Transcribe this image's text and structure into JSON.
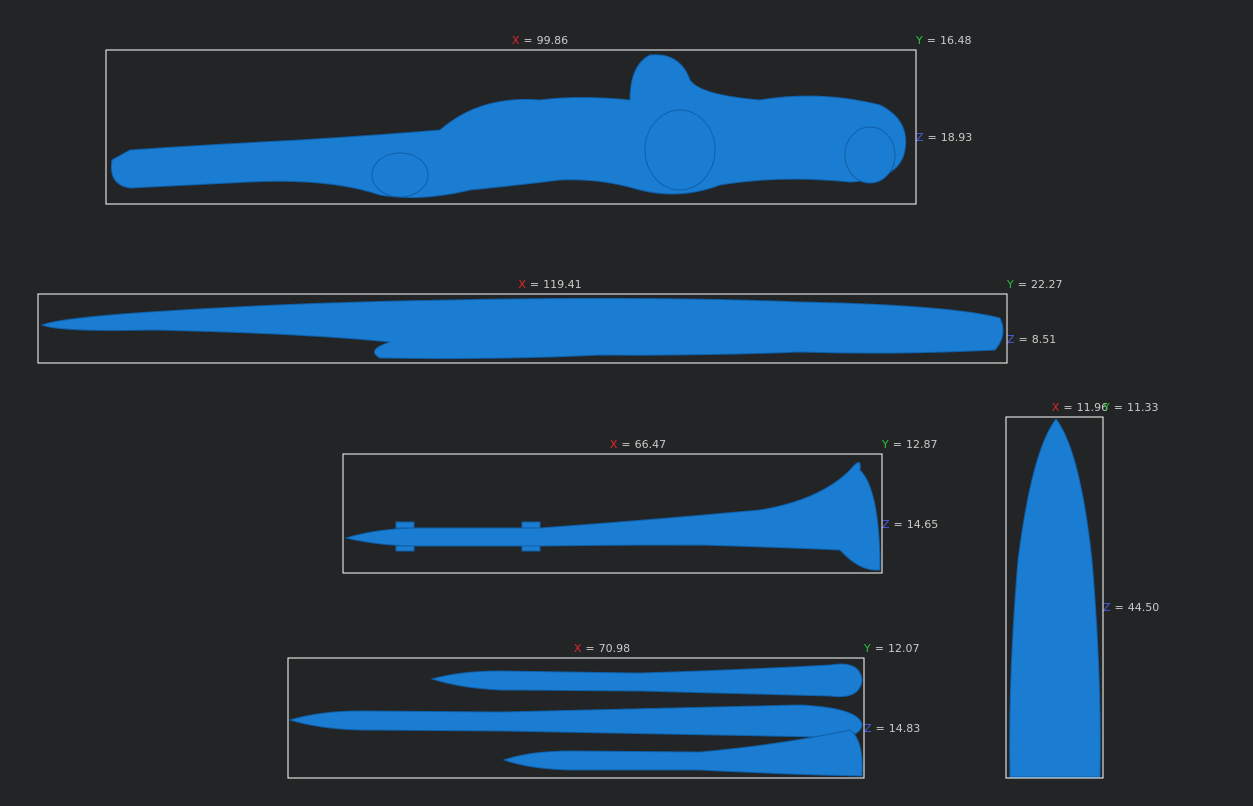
{
  "axis_letters": [
    "X",
    "Y",
    "Z"
  ],
  "separator": "=",
  "models": [
    {
      "x": "99.86",
      "y": "16.48",
      "z": "18.93"
    },
    {
      "x": "119.41",
      "y": "22.27",
      "z": "8.51"
    },
    {
      "x": "66.47",
      "y": "12.87",
      "z": "14.65"
    },
    {
      "x": "70.98",
      "y": "12.07",
      "z": "14.83"
    },
    {
      "x": "11.96",
      "y": "11.33",
      "z": "44.50"
    }
  ]
}
